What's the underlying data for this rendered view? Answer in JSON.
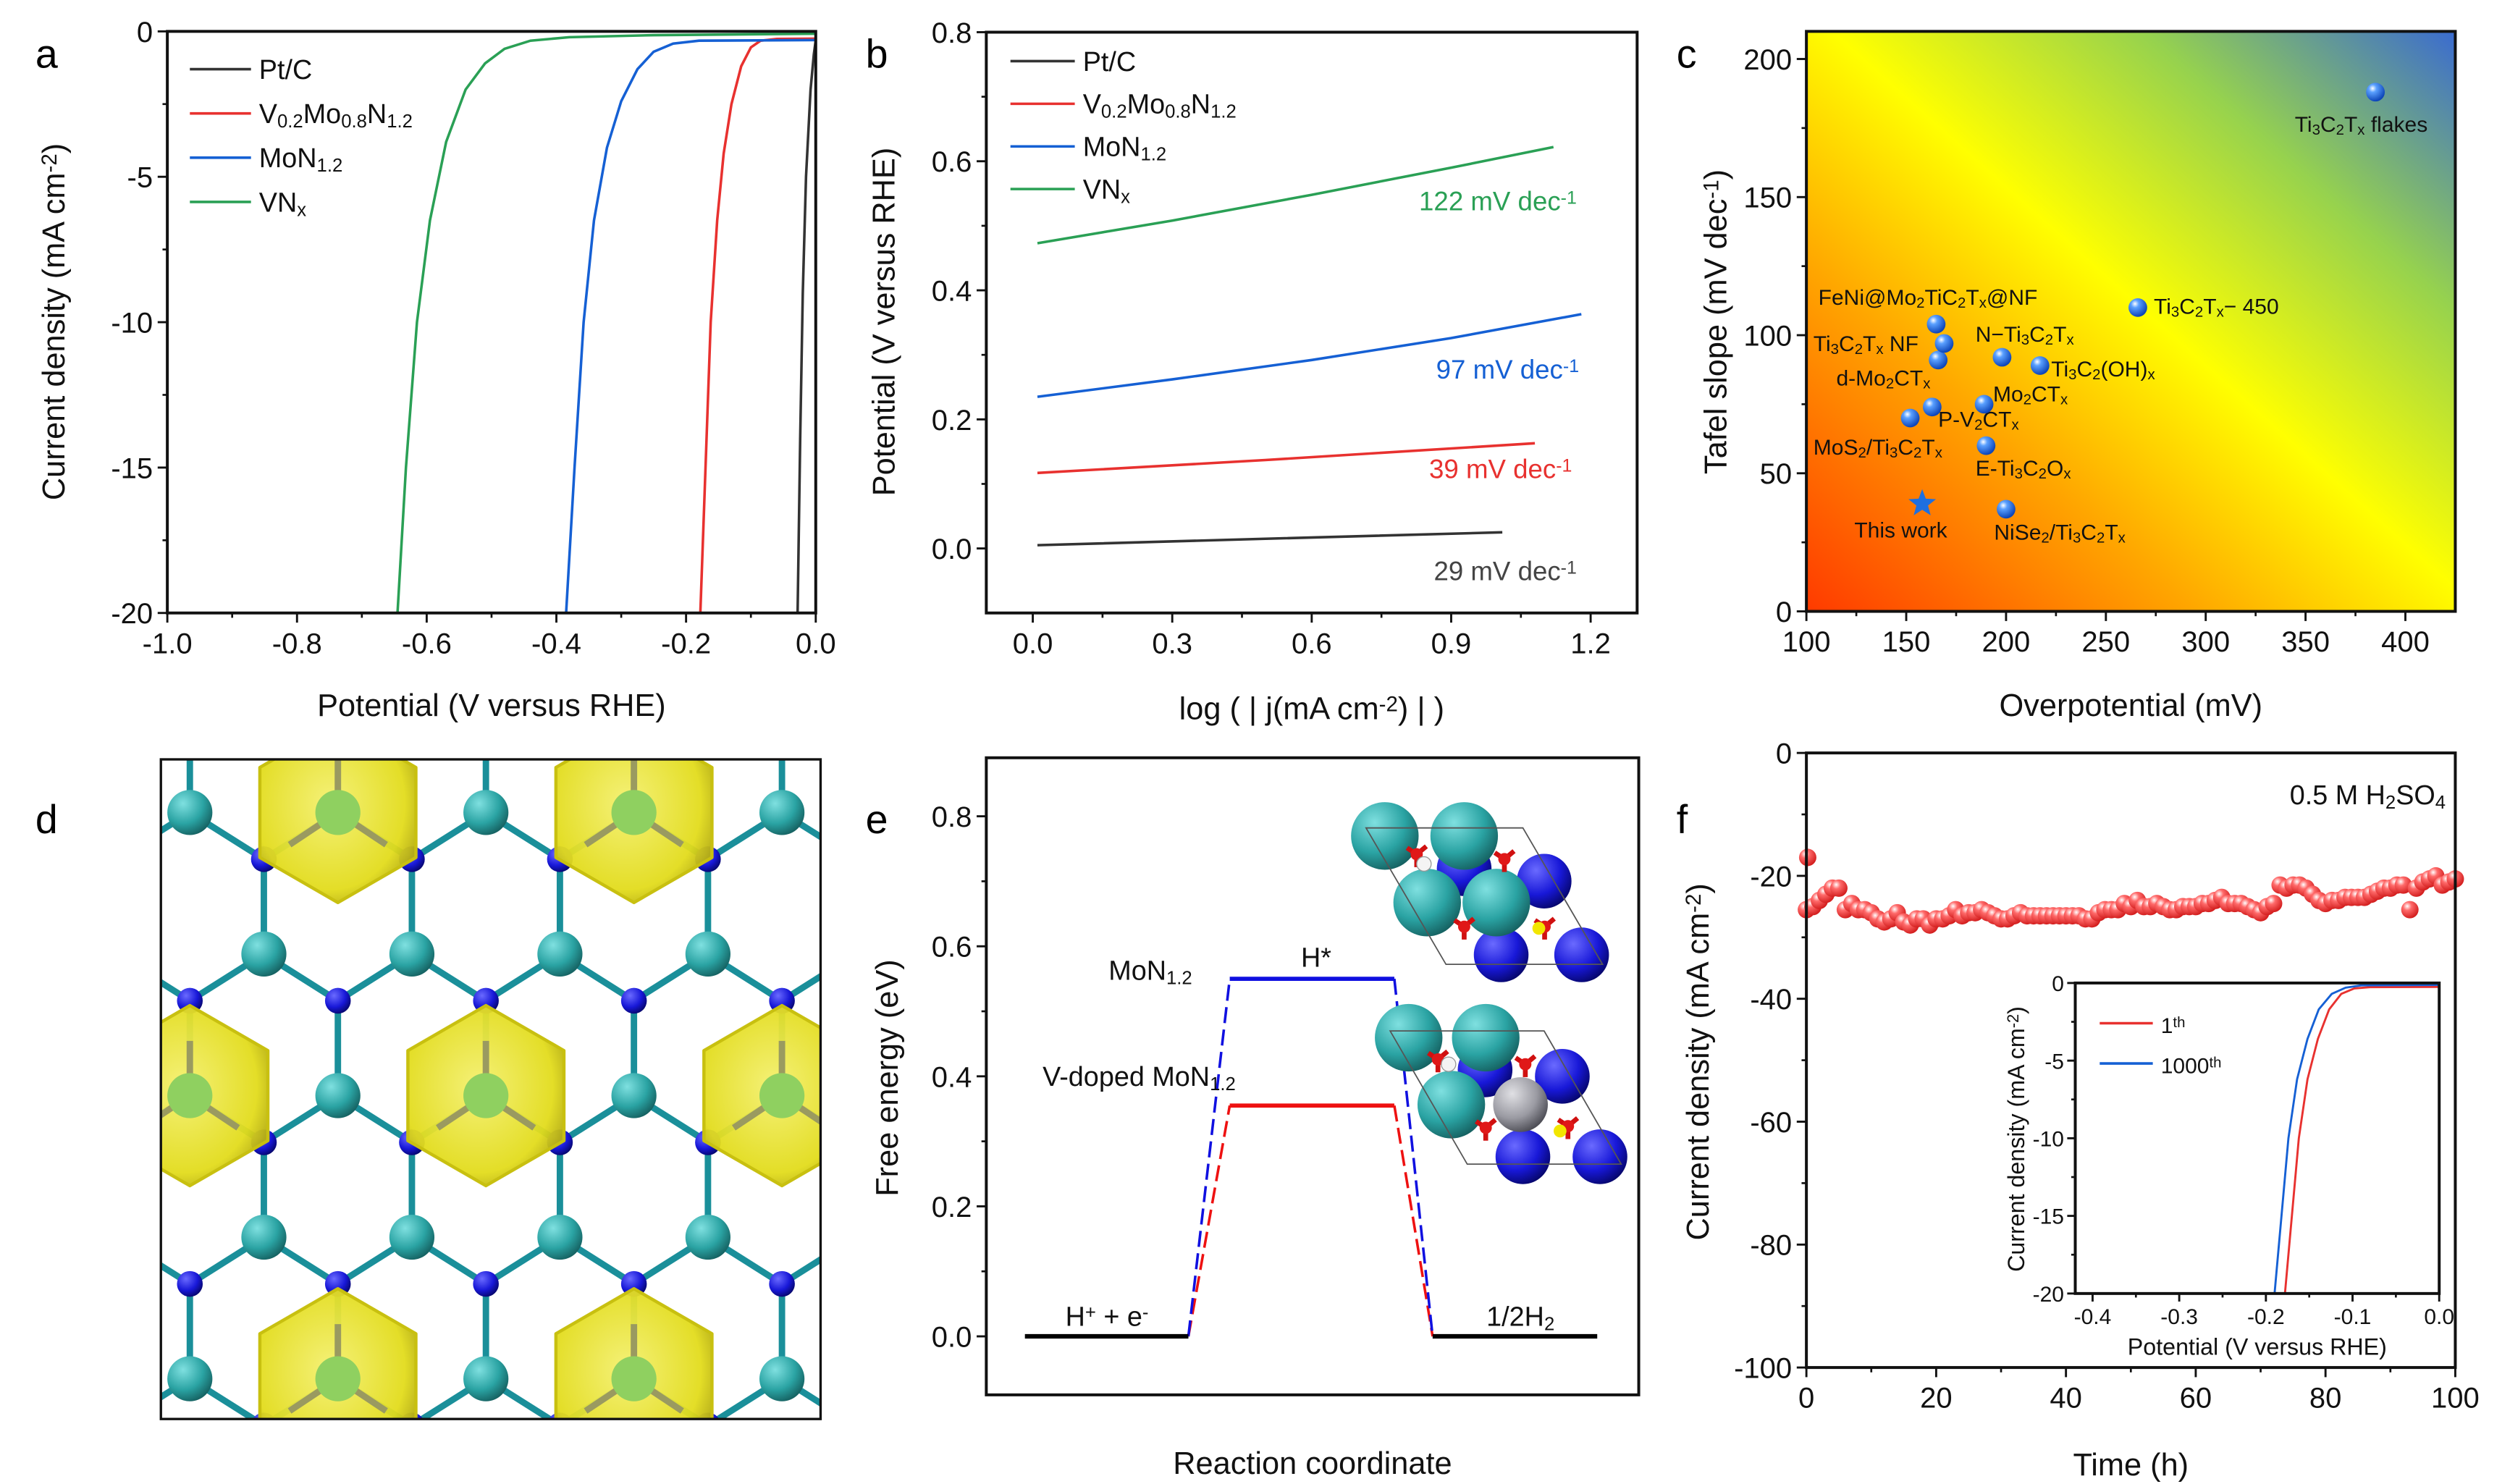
{
  "panel_labels": [
    "a",
    "b",
    "c",
    "d",
    "e",
    "f"
  ],
  "chart_data": [
    {
      "panel": "a",
      "type": "line",
      "xlabel": "Potential (V versus RHE)",
      "ylabel": "Current density (mA cm^{-2})",
      "xlim": [
        -1.0,
        0.0
      ],
      "ylim": [
        -20,
        0
      ],
      "xticks": [
        -1.0,
        -0.8,
        -0.6,
        -0.4,
        -0.2,
        0.0
      ],
      "xtick_labels": [
        "-1.0",
        "-0.8",
        "-0.6",
        "-0.4",
        "-0.2",
        "0.0"
      ],
      "yticks": [
        -20,
        -15,
        -10,
        -5,
        0
      ],
      "ytick_labels": [
        "-20",
        "-15",
        "-10",
        "-5",
        "0"
      ],
      "grid": false,
      "legend": "top-left",
      "series": [
        {
          "name": "Pt/C",
          "color": "#333333",
          "points": [
            [
              -0.028,
              -20
            ],
            [
              -0.024,
              -14
            ],
            [
              -0.02,
              -9
            ],
            [
              -0.015,
              -5
            ],
            [
              -0.008,
              -2
            ],
            [
              -0.003,
              -0.8
            ],
            [
              0,
              -0.3
            ]
          ]
        },
        {
          "name": "V_{0.2}Mo_{0.8}N_{1.2}",
          "color": "#e8312f",
          "points": [
            [
              -0.178,
              -20
            ],
            [
              -0.17,
              -15
            ],
            [
              -0.162,
              -10
            ],
            [
              -0.152,
              -6.5
            ],
            [
              -0.142,
              -4.2
            ],
            [
              -0.13,
              -2.5
            ],
            [
              -0.115,
              -1.2
            ],
            [
              -0.1,
              -0.55
            ],
            [
              -0.085,
              -0.32
            ],
            [
              -0.06,
              -0.26
            ],
            [
              0,
              -0.25
            ]
          ]
        },
        {
          "name": "MoN_{1.2}",
          "color": "#1560d4",
          "points": [
            [
              -0.385,
              -20
            ],
            [
              -0.372,
              -15
            ],
            [
              -0.358,
              -10
            ],
            [
              -0.342,
              -6.5
            ],
            [
              -0.322,
              -4
            ],
            [
              -0.3,
              -2.4
            ],
            [
              -0.275,
              -1.3
            ],
            [
              -0.25,
              -0.7
            ],
            [
              -0.22,
              -0.42
            ],
            [
              -0.18,
              -0.32
            ],
            [
              0,
              -0.3
            ]
          ]
        },
        {
          "name": "VN_{x}",
          "color": "#2aa055",
          "points": [
            [
              -0.645,
              -20
            ],
            [
              -0.632,
              -15
            ],
            [
              -0.615,
              -10
            ],
            [
              -0.595,
              -6.5
            ],
            [
              -0.57,
              -3.8
            ],
            [
              -0.54,
              -2
            ],
            [
              -0.51,
              -1.1
            ],
            [
              -0.48,
              -0.6
            ],
            [
              -0.44,
              -0.32
            ],
            [
              -0.38,
              -0.2
            ],
            [
              -0.25,
              -0.13
            ],
            [
              0,
              -0.08
            ]
          ]
        }
      ]
    },
    {
      "panel": "b",
      "type": "line",
      "xlabel": "log ( | j(mA cm^{-2}) | )",
      "ylabel": "Potential (V versus RHE)",
      "xlim": [
        -0.1,
        1.3
      ],
      "ylim": [
        -0.1,
        0.8
      ],
      "xticks": [
        0.0,
        0.3,
        0.6,
        0.9,
        1.2
      ],
      "xtick_labels": [
        "0.0",
        "0.3",
        "0.6",
        "0.9",
        "1.2"
      ],
      "yticks": [
        0.0,
        0.2,
        0.4,
        0.6,
        0.8
      ],
      "ytick_labels": [
        "0.0",
        "0.2",
        "0.4",
        "0.6",
        "0.8"
      ],
      "grid": false,
      "legend": "top-left",
      "series": [
        {
          "name": "Pt/C",
          "color": "#333333",
          "points": [
            [
              0.01,
              0.005
            ],
            [
              0.5,
              0.015
            ],
            [
              1.01,
              0.025
            ]
          ],
          "annotation": "29 mV dec^{-1}",
          "annotation_color": "#444444"
        },
        {
          "name": "V_{0.2}Mo_{0.8}N_{1.2}",
          "color": "#e8312f",
          "points": [
            [
              0.01,
              0.117
            ],
            [
              0.5,
              0.137
            ],
            [
              1.08,
              0.163
            ]
          ],
          "annotation": "39 mV dec^{-1}",
          "annotation_color": "#e8312f"
        },
        {
          "name": "MoN_{1.2}",
          "color": "#1560d4",
          "points": [
            [
              0.01,
              0.235
            ],
            [
              0.3,
              0.262
            ],
            [
              0.6,
              0.292
            ],
            [
              0.9,
              0.326
            ],
            [
              1.18,
              0.363
            ]
          ],
          "annotation": "97 mV dec^{-1}",
          "annotation_color": "#1560d4"
        },
        {
          "name": "VN_{x}",
          "color": "#2aa055",
          "points": [
            [
              0.01,
              0.473
            ],
            [
              0.3,
              0.508
            ],
            [
              0.6,
              0.548
            ],
            [
              0.9,
              0.59
            ],
            [
              1.12,
              0.622
            ]
          ],
          "annotation": "122 mV dec^{-1}",
          "annotation_color": "#2aa055"
        }
      ]
    },
    {
      "panel": "c",
      "type": "scatter",
      "xlabel": "Overpotential (mV)",
      "ylabel": "Tafel slope (mV dec^{-1})",
      "xlim": [
        100,
        425
      ],
      "ylim": [
        0,
        210
      ],
      "xticks": [
        100,
        150,
        200,
        250,
        300,
        350,
        400
      ],
      "xtick_labels": [
        "100",
        "150",
        "200",
        "250",
        "300",
        "350",
        "400"
      ],
      "yticks": [
        0,
        50,
        100,
        150,
        200
      ],
      "ytick_labels": [
        "0",
        "50",
        "100",
        "150",
        "200"
      ],
      "grid": false,
      "background_gradient": [
        "#ff3a00",
        "#ffa600",
        "#ffff00",
        "#96d24e",
        "#3a6bd0"
      ],
      "marker_color": "#1e6fe0",
      "points": [
        {
          "label": "This work",
          "x": 158,
          "y": 39,
          "marker": "star"
        },
        {
          "label": "NiSe_{2}/Ti_{3}C_{2}T_{x}",
          "x": 200,
          "y": 37,
          "marker": "sphere"
        },
        {
          "label": "E-Ti_{3}C_{2}O_{x}",
          "x": 190,
          "y": 60,
          "marker": "sphere"
        },
        {
          "label": "MoS_{2}/Ti_{3}C_{2}T_{x}",
          "x": 152,
          "y": 70,
          "marker": "sphere"
        },
        {
          "label": "P-V_{2}CT_{x}",
          "x": 163,
          "y": 74,
          "marker": "sphere"
        },
        {
          "label": "Mo_{2}CT_{x}",
          "x": 189,
          "y": 75,
          "marker": "sphere"
        },
        {
          "label": "d-Mo_{2}CT_{x}",
          "x": 166,
          "y": 91,
          "marker": "sphere"
        },
        {
          "label": "Ti_{3}C_{2}T_{x} NF",
          "x": 169,
          "y": 97,
          "marker": "sphere"
        },
        {
          "label": "FeNi@Mo_{2}TiC_{2}T_{x}@NF",
          "x": 165,
          "y": 104,
          "marker": "sphere"
        },
        {
          "label": "N−Ti_{3}C_{2}T_{x}",
          "x": 198,
          "y": 92,
          "marker": "sphere"
        },
        {
          "label": "Ti_{3}C_{2}(OH)_{x}",
          "x": 217,
          "y": 89,
          "marker": "sphere"
        },
        {
          "label": "Ti_{3}C_{2}T_{x}− 450",
          "x": 266,
          "y": 110,
          "marker": "sphere"
        },
        {
          "label": "Ti_{3}C_{2}T_{x} flakes",
          "x": 385,
          "y": 188,
          "marker": "sphere"
        }
      ]
    },
    {
      "panel": "e",
      "type": "line",
      "xlabel": "Reaction coordinate",
      "ylabel": "Free energy (eV)",
      "ylim": [
        -0.09,
        0.89
      ],
      "yticks": [
        0.0,
        0.2,
        0.4,
        0.6,
        0.8
      ],
      "ytick_labels": [
        "0.0",
        "0.2",
        "0.4",
        "0.6",
        "0.8"
      ],
      "steps": [
        "H^{+} + e^{-}",
        "H*",
        "1/2H_{2}"
      ],
      "baseline_color": "#000000",
      "series": [
        {
          "name": "MoN_{1.2}",
          "color": "#1010e0",
          "values": [
            0,
            0.55,
            0
          ]
        },
        {
          "name": "V-doped MoN_{1.2}",
          "color": "#ee1111",
          "values": [
            0,
            0.355,
            0
          ]
        }
      ]
    },
    {
      "panel": "f",
      "type": "scatter",
      "xlabel": "Time (h)",
      "ylabel": "Current density (mA cm^{-2})",
      "annotation": "0.5 M H_{2}SO_{4}",
      "xlim": [
        0,
        100
      ],
      "ylim": [
        -100,
        0
      ],
      "xticks": [
        0,
        20,
        40,
        60,
        80,
        100
      ],
      "xtick_labels": [
        "0",
        "20",
        "40",
        "60",
        "80",
        "100"
      ],
      "yticks": [
        -100,
        -80,
        -60,
        -40,
        -20,
        0
      ],
      "ytick_labels": [
        "-100",
        "-80",
        "-60",
        "-40",
        "-20",
        "0"
      ],
      "marker_color": "#e83838",
      "x": [
        0.2,
        0,
        1,
        2,
        3,
        4,
        5,
        6,
        7,
        8,
        9,
        10,
        11,
        12,
        13,
        14,
        15,
        16,
        17,
        18,
        19,
        20,
        21,
        22,
        23,
        24,
        25,
        26,
        27,
        28,
        29,
        30,
        31,
        32,
        33,
        34,
        35,
        36,
        37,
        38,
        39,
        40,
        41,
        42,
        43,
        44,
        45,
        46,
        47,
        48,
        49,
        50,
        51,
        52,
        53,
        54,
        55,
        56,
        57,
        58,
        59,
        60,
        61,
        62,
        63,
        64,
        65,
        66,
        67,
        68,
        69,
        70,
        71,
        72,
        73,
        74,
        75,
        76,
        77,
        78,
        79,
        80,
        81,
        82,
        83,
        84,
        85,
        86,
        87,
        88,
        89,
        90,
        91,
        92,
        93,
        94,
        95,
        96,
        97,
        98,
        99,
        100
      ],
      "y": [
        -17,
        -25.5,
        -25,
        -24,
        -23,
        -22,
        -22,
        -25.5,
        -24.5,
        -25.5,
        -25.5,
        -26,
        -27,
        -27.5,
        -27,
        -26,
        -27.5,
        -28,
        -27,
        -27,
        -28,
        -27,
        -27,
        -26.5,
        -25.5,
        -26.5,
        -26,
        -26,
        -25.5,
        -26,
        -26.5,
        -27,
        -27,
        -26.5,
        -26,
        -26.5,
        -26.5,
        -26.5,
        -26.5,
        -26.5,
        -26.5,
        -26.5,
        -26.5,
        -26.5,
        -27,
        -27,
        -26,
        -25.5,
        -25.5,
        -25.5,
        -24.5,
        -25,
        -24,
        -25,
        -25,
        -24.5,
        -25,
        -25.5,
        -25.5,
        -25,
        -25,
        -25,
        -24.5,
        -24.5,
        -24,
        -23.5,
        -24.5,
        -24.5,
        -24.5,
        -25,
        -25.5,
        -26,
        -25,
        -24.5,
        -21.5,
        -22,
        -21.5,
        -21.5,
        -22,
        -23,
        -24,
        -24.5,
        -24,
        -24,
        -23.5,
        -23.5,
        -23.5,
        -23.5,
        -23,
        -22.5,
        -22,
        -22,
        -21.5,
        -21.5,
        -25.5,
        -22,
        -21,
        -20.5,
        -20,
        -21.5,
        -21,
        -20.5
      ],
      "inset": {
        "type": "line",
        "xlabel": "Potential (V versus RHE)",
        "ylabel": "Current density (mA cm^{-2})",
        "xlim": [
          -0.42,
          0.0
        ],
        "ylim": [
          -20,
          0
        ],
        "xticks": [
          -0.4,
          -0.3,
          -0.2,
          -0.1,
          0.0
        ],
        "xtick_labels": [
          "-0.4",
          "-0.3",
          "-0.2",
          "-0.1",
          "0.0"
        ],
        "yticks": [
          -20,
          -15,
          -10,
          -5,
          0
        ],
        "ytick_labels": [
          "-20",
          "-15",
          "-10",
          "-5",
          "0"
        ],
        "legend": "top-left",
        "series": [
          {
            "name": "1^{th}",
            "color": "#e8312f",
            "points": [
              [
                -0.178,
                -20
              ],
              [
                -0.17,
                -15
              ],
              [
                -0.162,
                -10
              ],
              [
                -0.152,
                -6.2
              ],
              [
                -0.14,
                -3.6
              ],
              [
                -0.127,
                -1.7
              ],
              [
                -0.113,
                -0.7
              ],
              [
                -0.098,
                -0.35
              ],
              [
                -0.08,
                -0.27
              ],
              [
                0,
                -0.25
              ]
            ]
          },
          {
            "name": "1000^{th}",
            "color": "#1560d4",
            "points": [
              [
                -0.19,
                -20
              ],
              [
                -0.182,
                -15
              ],
              [
                -0.174,
                -10
              ],
              [
                -0.164,
                -6.2
              ],
              [
                -0.152,
                -3.6
              ],
              [
                -0.139,
                -1.7
              ],
              [
                -0.124,
                -0.7
              ],
              [
                -0.108,
                -0.3
              ],
              [
                -0.09,
                -0.15
              ],
              [
                0,
                -0.12
              ]
            ]
          }
        ]
      }
    }
  ],
  "panel_d": {
    "atom_colors": {
      "metal": "#2aa3a3",
      "nitrogen": "#1a1ad8",
      "isosurface": "#e6e020"
    }
  }
}
